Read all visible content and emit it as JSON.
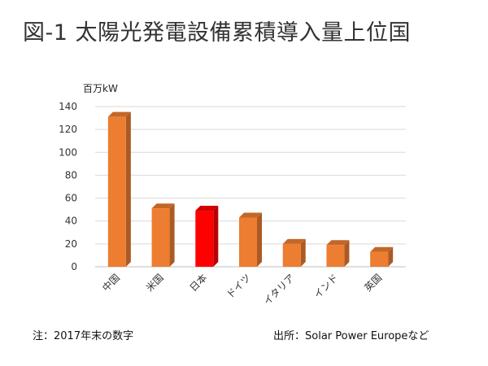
{
  "title": "図-1 太陽光発電設備累積導入量上位国",
  "footnote_left": "注：2017年末の数字",
  "footnote_right": "出所：Solar Power Europeなど",
  "chart_data": {
    "type": "bar",
    "title": "図-1 太陽光発電設備累積導入量上位国",
    "ylabel": "百万kW",
    "xlabel": "",
    "categories": [
      "中国",
      "米国",
      "日本",
      "ドイツ",
      "イタリア",
      "インド",
      "英国"
    ],
    "values": [
      131,
      51,
      49,
      43,
      20,
      19,
      13
    ],
    "ylim": [
      0,
      140
    ],
    "yticks": [
      0,
      20,
      40,
      60,
      80,
      100,
      120,
      140
    ],
    "grid": true,
    "legend": "none",
    "colors": {
      "default": "#ED7D31",
      "highlight": "#FF0000",
      "highlight_category": "日本"
    }
  }
}
